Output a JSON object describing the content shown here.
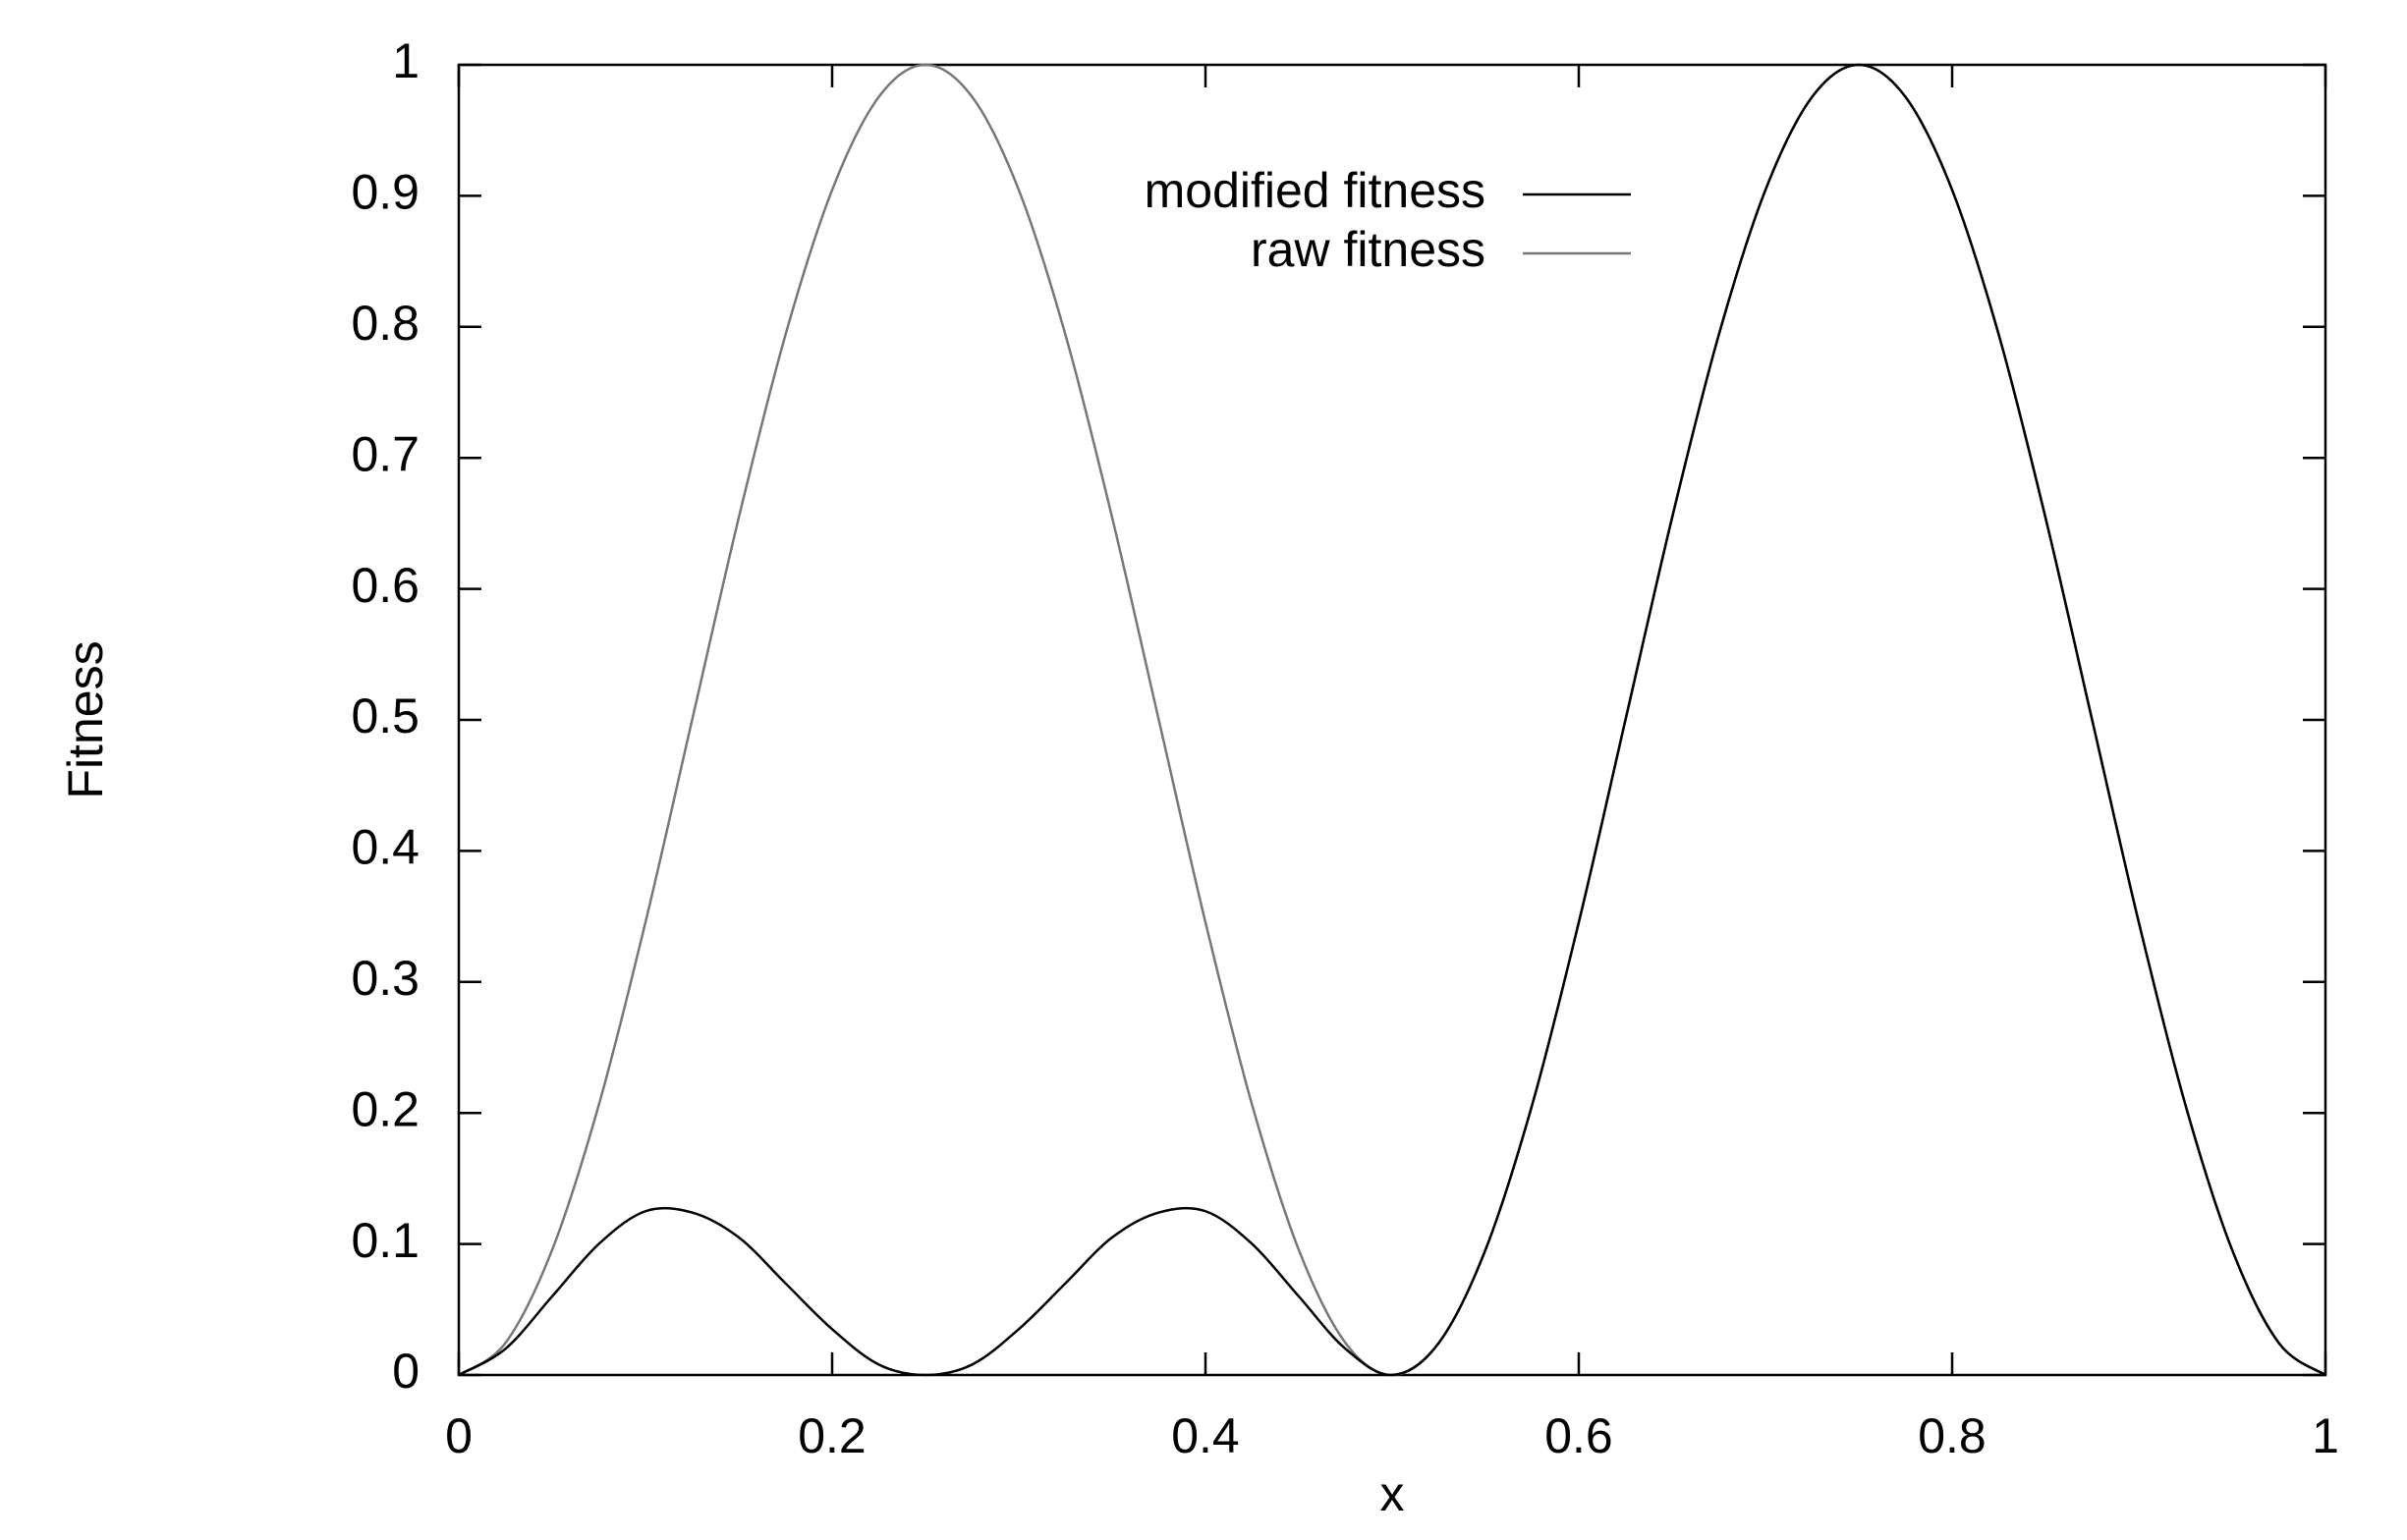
{
  "chart_data": {
    "type": "line",
    "xlabel": "x",
    "ylabel": "Fitness",
    "x": [
      0,
      0.025,
      0.05,
      0.075,
      0.1,
      0.125,
      0.15,
      0.175,
      0.2,
      0.225,
      0.25,
      0.275,
      0.3,
      0.325,
      0.35,
      0.375,
      0.4,
      0.425,
      0.45,
      0.475,
      0.5,
      0.525,
      0.55,
      0.575,
      0.6,
      0.625,
      0.65,
      0.675,
      0.7,
      0.725,
      0.75,
      0.775,
      0.8,
      0.825,
      0.85,
      0.875,
      0.9,
      0.925,
      0.95,
      0.975,
      1
    ],
    "series": [
      {
        "name": "modified fitness",
        "color": "#000000",
        "values": [
          0,
          0.02,
          0.06,
          0.1,
          0.125,
          0.124,
          0.105,
          0.07,
          0.035,
          0.008,
          0,
          0.008,
          0.035,
          0.07,
          0.105,
          0.124,
          0.125,
          0.1,
          0.06,
          0.02,
          0,
          0.0245,
          0.0955,
          0.2061,
          0.3455,
          0.5,
          0.6545,
          0.7939,
          0.9045,
          0.9755,
          1,
          0.9755,
          0.9045,
          0.7939,
          0.6545,
          0.5,
          0.3455,
          0.2061,
          0.0955,
          0.0245,
          0
        ]
      },
      {
        "name": "raw fitness",
        "color": "#777777",
        "values": [
          0,
          0.0245,
          0.0955,
          0.2061,
          0.3455,
          0.5,
          0.6545,
          0.7939,
          0.9045,
          0.9755,
          1,
          0.9755,
          0.9045,
          0.7939,
          0.6545,
          0.5,
          0.3455,
          0.2061,
          0.0955,
          0.0245,
          0,
          0.0245,
          0.0955,
          0.2061,
          0.3455,
          0.5,
          0.6545,
          0.7939,
          0.9045,
          0.9755,
          1,
          0.9755,
          0.9045,
          0.7939,
          0.6545,
          0.5,
          0.3455,
          0.2061,
          0.0955,
          0.0245,
          0
        ]
      }
    ],
    "xlim": [
      0,
      1
    ],
    "xticks": [
      0,
      0.2,
      0.4,
      0.6,
      0.8,
      1
    ],
    "ylim": [
      0,
      1
    ],
    "yticks": [
      0,
      0.1,
      0.2,
      0.3,
      0.4,
      0.5,
      0.6,
      0.7,
      0.8,
      0.9,
      1
    ],
    "legend": "top-center"
  }
}
